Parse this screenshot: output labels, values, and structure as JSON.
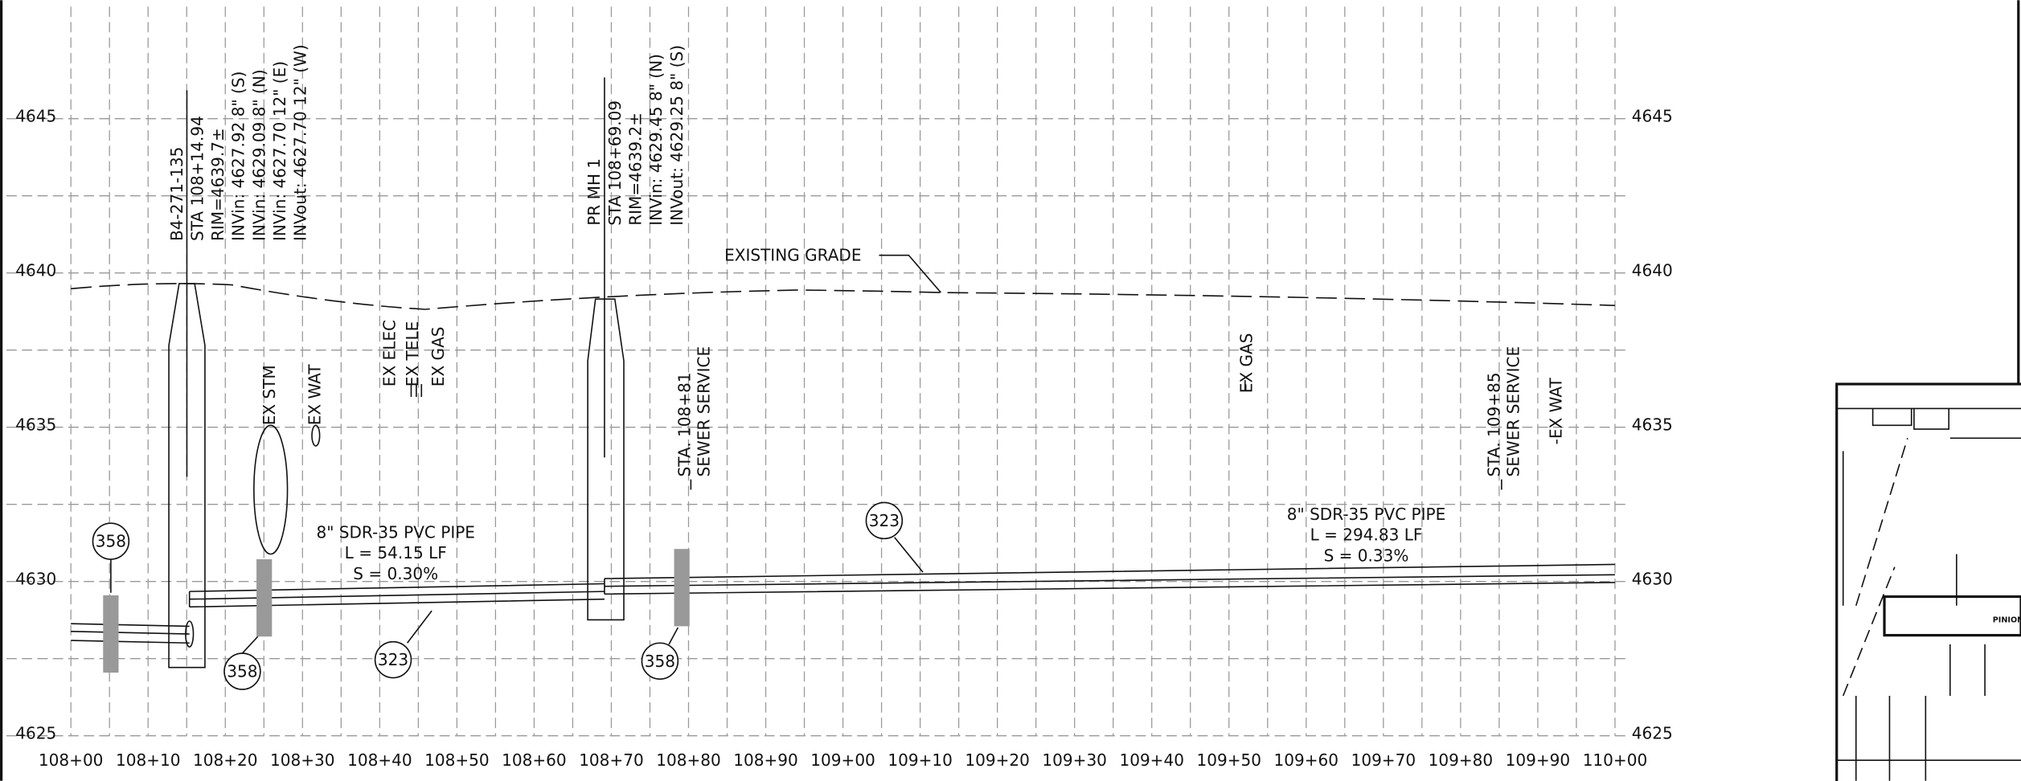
{
  "elevation_labels_left": [
    "4645",
    "4640",
    "4635",
    "4630",
    "4625"
  ],
  "elevation_labels_right": [
    "4645",
    "4640",
    "4635",
    "4630",
    "4625"
  ],
  "station_labels": [
    "108+00",
    "108+10",
    "108+20",
    "108+30",
    "108+40",
    "108+50",
    "108+60",
    "108+70",
    "108+80",
    "108+90",
    "109+00",
    "109+10",
    "109+20",
    "109+30",
    "109+40",
    "109+50",
    "109+60",
    "109+70",
    "109+80",
    "109+90",
    "110+00"
  ],
  "manholes": [
    {
      "lines": [
        "B4-271-135",
        "STA 108+14.94",
        "RIM=4639.7±",
        "INVin: 4627.92 8\" (S)",
        "INVin: 4629.09 8\" (N)",
        "INVin: 4627.70 12\" (E)",
        "INVout: 4627.70 12\" (W)"
      ]
    },
    {
      "lines": [
        "PR MH 1",
        "STA 108+69.09",
        "RIM=4639.2±",
        "INVin: 4629.45 8\" (N)",
        "INVout: 4629.25 8\" (S)"
      ]
    }
  ],
  "utilities": [
    "EX STM",
    "EX WAT",
    "EX ELEC",
    "EX TELE",
    "EX GAS",
    "EX GAS",
    "-EX WAT"
  ],
  "services": [
    {
      "lines": [
        "STA. 108+81",
        "SEWER SERVICE"
      ]
    },
    {
      "lines": [
        "STA. 109+85",
        "SEWER SERVICE"
      ]
    }
  ],
  "pipes": [
    {
      "lines": [
        "8\" SDR-35 PVC PIPE",
        "L = 54.15 LF",
        "S = 0.30%"
      ]
    },
    {
      "lines": [
        "8\" SDR-35 PVC PIPE",
        "L = 294.83 LF",
        "S = 0.33%"
      ]
    }
  ],
  "callouts": [
    "358",
    "358",
    "323",
    "323",
    "358"
  ],
  "grade_label": "EXISTING GRADE",
  "inset": {
    "street": "PINION"
  }
}
